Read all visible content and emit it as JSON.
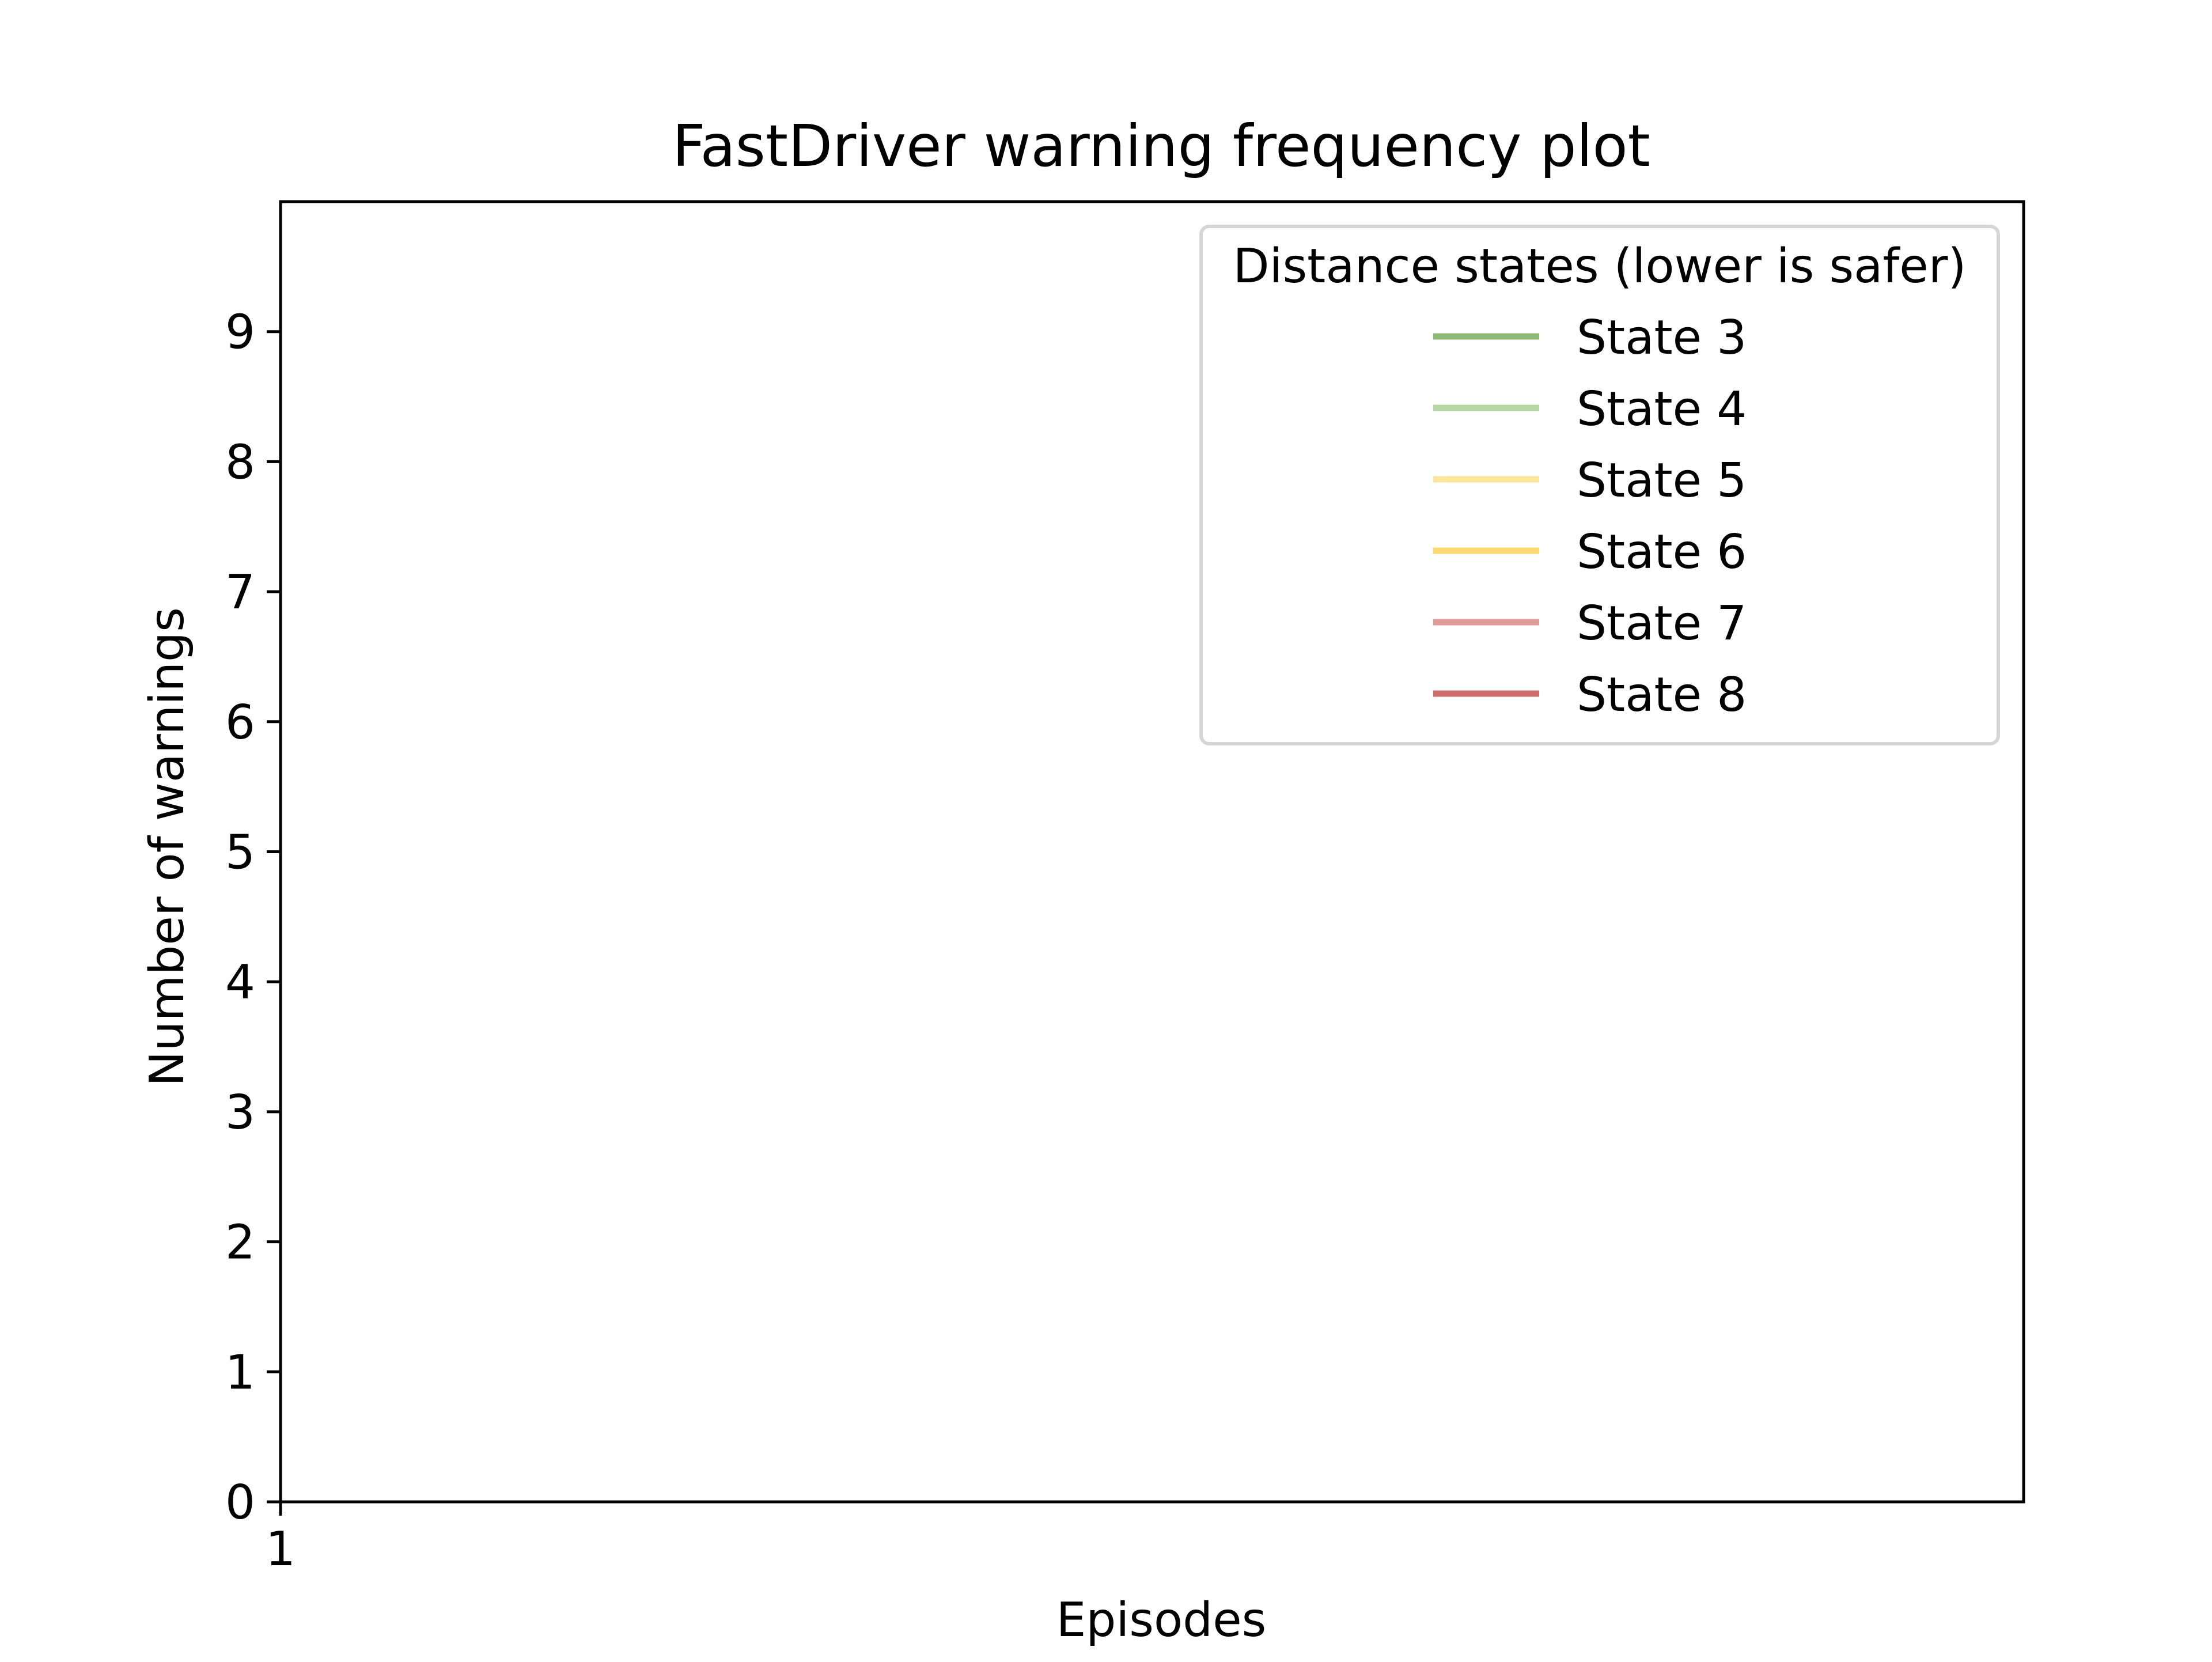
{
  "chart_data": {
    "type": "line",
    "title": "FastDriver warning frequency plot",
    "xlabel": "Episodes",
    "ylabel": "Number of warnings",
    "x_ticks": [
      1
    ],
    "y_ticks": [
      0,
      1,
      2,
      3,
      4,
      5,
      6,
      7,
      8,
      9
    ],
    "xlim": [
      1,
      2
    ],
    "ylim": [
      0,
      10
    ],
    "grid": false,
    "legend": {
      "title": "Distance states (lower is safer)",
      "placement": "top-right"
    },
    "series": [
      {
        "name": "State 3",
        "color": "#8fba78",
        "x": [],
        "values": []
      },
      {
        "name": "State 4",
        "color": "#b8d6a4",
        "x": [],
        "values": []
      },
      {
        "name": "State 5",
        "color": "#fde69a",
        "x": [],
        "values": []
      },
      {
        "name": "State 6",
        "color": "#fcd96e",
        "x": [],
        "values": []
      },
      {
        "name": "State 7",
        "color": "#e09a98",
        "x": [],
        "values": []
      },
      {
        "name": "State 8",
        "color": "#cd6e6a",
        "x": [],
        "values": []
      }
    ]
  }
}
